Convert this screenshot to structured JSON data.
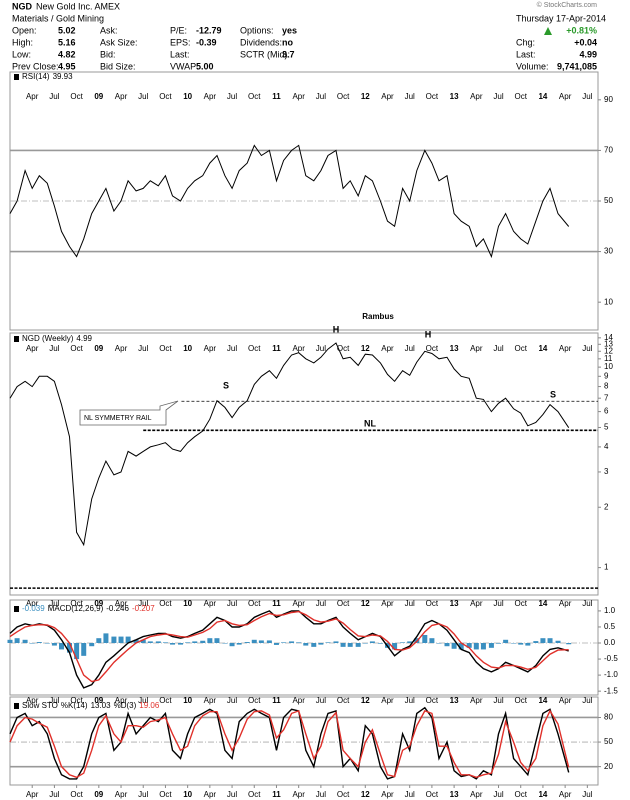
{
  "header": {
    "symbol": "NGD",
    "name": "New Gold Inc. AMEX",
    "sector": "Materials / Gold Mining",
    "date": "Thursday 17-Apr-2014",
    "credit": "© StockCharts.com",
    "change": "+0.81%",
    "columns": [
      [
        {
          "label": "Open:",
          "value": "5.02"
        },
        {
          "label": "High:",
          "value": "5.16"
        },
        {
          "label": "Low:",
          "value": "4.82"
        },
        {
          "label": "Prev Close:",
          "value": "4.95"
        }
      ],
      [
        {
          "label": "Ask:"
        },
        {
          "label": "Ask Size:"
        },
        {
          "label": "Bid:"
        },
        {
          "label": "Bid Size:"
        }
      ],
      [
        {
          "label": "P/E:",
          "value": "-12.79"
        },
        {
          "label": "EPS:",
          "value": "-0.39"
        },
        {
          "label": "Last:"
        },
        {
          "label": "VWAP:",
          "value": "5.00"
        }
      ],
      [
        {
          "label": "Options:",
          "value": "yes"
        },
        {
          "label": "Dividends:",
          "value": "no"
        },
        {
          "label": "SCTR (Mid):",
          "value": "3.7"
        }
      ]
    ],
    "right": [
      {
        "label": "Chg:",
        "value": "+0.04"
      },
      {
        "label": "Last:"
      },
      {
        "label": "Volume:",
        "value": "9,741,085"
      }
    ]
  },
  "chart_data": [
    {
      "type": "line",
      "ylim": [
        -1,
        101
      ],
      "yticks": [
        90,
        70,
        50,
        30,
        10
      ],
      "xlim": [
        2008.0,
        2014.62
      ],
      "xticks": [
        {
          "value": 2008.25,
          "label": "Apr"
        },
        {
          "value": 2008.5,
          "label": "Jul"
        },
        {
          "value": 2008.75,
          "label": "Oct"
        },
        {
          "value": 2009,
          "label": "09"
        },
        {
          "value": 2009.25,
          "label": "Apr"
        },
        {
          "value": 2009.5,
          "label": "Jul"
        },
        {
          "value": 2009.75,
          "label": "Oct"
        },
        {
          "value": 2010,
          "label": "10"
        },
        {
          "value": 2010.25,
          "label": "Apr"
        },
        {
          "value": 2010.5,
          "label": "Jul"
        },
        {
          "value": 2010.75,
          "label": "Oct"
        },
        {
          "value": 2011,
          "label": "11"
        },
        {
          "value": 2011.25,
          "label": "Apr"
        },
        {
          "value": 2011.5,
          "label": "Jul"
        },
        {
          "value": 2011.75,
          "label": "Oct"
        },
        {
          "value": 2012,
          "label": "12"
        },
        {
          "value": 2012.25,
          "label": "Apr"
        },
        {
          "value": 2012.5,
          "label": "Jul"
        },
        {
          "value": 2012.75,
          "label": "Oct"
        },
        {
          "value": 2013,
          "label": "13"
        },
        {
          "value": 2013.25,
          "label": "Apr"
        },
        {
          "value": 2013.5,
          "label": "Jul"
        },
        {
          "value": 2013.75,
          "label": "Oct"
        },
        {
          "value": 2014,
          "label": "14"
        },
        {
          "value": 2014.25,
          "label": "Apr"
        },
        {
          "value": 2014.5,
          "label": "Jul"
        }
      ],
      "x": [
        2008,
        2008.08,
        2008.17,
        2008.25,
        2008.33,
        2008.42,
        2008.5,
        2008.58,
        2008.67,
        2008.75,
        2008.83,
        2008.92,
        2009,
        2009.08,
        2009.17,
        2009.25,
        2009.33,
        2009.42,
        2009.5,
        2009.58,
        2009.67,
        2009.75,
        2009.83,
        2009.92,
        2010,
        2010.08,
        2010.17,
        2010.25,
        2010.33,
        2010.42,
        2010.5,
        2010.58,
        2010.67,
        2010.75,
        2010.83,
        2010.92,
        2011,
        2011.08,
        2011.17,
        2011.25,
        2011.33,
        2011.42,
        2011.5,
        2011.58,
        2011.67,
        2011.75,
        2011.83,
        2011.92,
        2012,
        2012.08,
        2012.17,
        2012.25,
        2012.33,
        2012.42,
        2012.5,
        2012.58,
        2012.67,
        2012.75,
        2012.83,
        2012.92,
        2013,
        2013.08,
        2013.17,
        2013.25,
        2013.33,
        2013.42,
        2013.5,
        2013.58,
        2013.67,
        2013.75,
        2013.83,
        2013.92,
        2014,
        2014.08,
        2014.17,
        2014.29
      ],
      "series": [
        {
          "name": "RSI(14)",
          "color": "#000000",
          "values": [
            45,
            50,
            62,
            55,
            60,
            57,
            48,
            38,
            32,
            28,
            35,
            45,
            50,
            55,
            46,
            50,
            58,
            54,
            55,
            58,
            56,
            60,
            52,
            50,
            55,
            58,
            60,
            65,
            68,
            60,
            55,
            62,
            65,
            72,
            68,
            70,
            58,
            66,
            70,
            72,
            60,
            58,
            62,
            68,
            70,
            55,
            58,
            52,
            60,
            58,
            50,
            42,
            40,
            55,
            50,
            62,
            70,
            65,
            58,
            60,
            45,
            42,
            40,
            32,
            35,
            28,
            40,
            45,
            38,
            35,
            33,
            42,
            50,
            55,
            45,
            39.93
          ]
        }
      ]
    },
    {
      "type": "line",
      "log": true,
      "ylim": [
        0.73,
        14.8
      ],
      "yticks": [
        1,
        2,
        3,
        4,
        5,
        6,
        7,
        8,
        9,
        10,
        11,
        12,
        13,
        14
      ],
      "note": "Rambus",
      "pattern_labels": [
        "S",
        "H",
        "H",
        "S",
        "NL"
      ],
      "callout": "NL SYMMETRY RAIL",
      "levels": [
        {
          "value": 6.76,
          "from": 2009.93
        },
        {
          "value": 4.84,
          "from": 2009.5
        },
        {
          "value": 0.79,
          "from": 2008
        }
      ],
      "x": [
        2008,
        2008.08,
        2008.17,
        2008.25,
        2008.33,
        2008.42,
        2008.5,
        2008.58,
        2008.67,
        2008.75,
        2008.83,
        2008.92,
        2009,
        2009.08,
        2009.17,
        2009.25,
        2009.33,
        2009.42,
        2009.5,
        2009.58,
        2009.67,
        2009.75,
        2009.83,
        2009.92,
        2010,
        2010.08,
        2010.17,
        2010.25,
        2010.33,
        2010.42,
        2010.5,
        2010.58,
        2010.67,
        2010.75,
        2010.83,
        2010.92,
        2011,
        2011.08,
        2011.17,
        2011.25,
        2011.33,
        2011.42,
        2011.5,
        2011.58,
        2011.67,
        2011.75,
        2011.83,
        2011.92,
        2012,
        2012.08,
        2012.17,
        2012.25,
        2012.33,
        2012.42,
        2012.5,
        2012.58,
        2012.67,
        2012.75,
        2012.83,
        2012.92,
        2013,
        2013.08,
        2013.17,
        2013.25,
        2013.33,
        2013.42,
        2013.5,
        2013.58,
        2013.67,
        2013.75,
        2013.83,
        2013.92,
        2014,
        2014.08,
        2014.17,
        2014.29
      ],
      "series": [
        {
          "name": "NGD (Weekly)",
          "color": "#000000",
          "values": [
            7,
            8,
            8.5,
            8,
            9,
            9,
            8.5,
            6.5,
            4.5,
            1.5,
            1.3,
            2.2,
            2.8,
            3.4,
            2.9,
            3.0,
            3.8,
            3.6,
            3.8,
            4.0,
            4.1,
            4.2,
            3.9,
            3.8,
            4.2,
            4.5,
            4.8,
            5.5,
            6.8,
            6.3,
            5.6,
            6.3,
            6.8,
            8.2,
            9.0,
            9.6,
            8.8,
            10.2,
            11.5,
            11.8,
            11.0,
            10.5,
            11.2,
            12.3,
            13.2,
            11.0,
            11.2,
            10.2,
            11.6,
            11.5,
            10.5,
            9.2,
            8.5,
            9.6,
            9.1,
            10.6,
            12.0,
            11.7,
            11.0,
            11.2,
            9.8,
            9.0,
            8.8,
            7.0,
            6.9,
            6.0,
            6.6,
            7.0,
            6.2,
            5.9,
            5.1,
            5.3,
            5.8,
            6.5,
            6.0,
            4.99
          ]
        }
      ]
    },
    {
      "type": "line",
      "ylim": [
        -1.62,
        1.34
      ],
      "yticks": [
        {
          "value": 1,
          "label": "1.0"
        },
        0.5,
        {
          "value": 0,
          "label": "0.0"
        },
        -0.5,
        {
          "value": -1,
          "label": "-1.0"
        },
        -1.5
      ],
      "x": [
        2008,
        2008.08,
        2008.17,
        2008.25,
        2008.33,
        2008.42,
        2008.5,
        2008.58,
        2008.67,
        2008.75,
        2008.83,
        2008.92,
        2009,
        2009.08,
        2009.17,
        2009.25,
        2009.33,
        2009.42,
        2009.5,
        2009.58,
        2009.67,
        2009.75,
        2009.83,
        2009.92,
        2010,
        2010.08,
        2010.17,
        2010.25,
        2010.33,
        2010.42,
        2010.5,
        2010.58,
        2010.67,
        2010.75,
        2010.83,
        2010.92,
        2011,
        2011.08,
        2011.17,
        2011.25,
        2011.33,
        2011.42,
        2011.5,
        2011.58,
        2011.67,
        2011.75,
        2011.83,
        2011.92,
        2012,
        2012.08,
        2012.17,
        2012.25,
        2012.33,
        2012.42,
        2012.5,
        2012.58,
        2012.67,
        2012.75,
        2012.83,
        2012.92,
        2013,
        2013.08,
        2013.17,
        2013.25,
        2013.33,
        2013.42,
        2013.5,
        2013.58,
        2013.67,
        2013.75,
        2013.83,
        2013.92,
        2014,
        2014.08,
        2014.17,
        2014.29
      ],
      "series": [
        {
          "type": "bar",
          "color": "#3a8fc0",
          "values": [
            0.1,
            0.15,
            0.1,
            0,
            0.03,
            -0.01,
            -0.08,
            -0.2,
            -0.3,
            -0.5,
            -0.4,
            -0.1,
            0.15,
            0.3,
            0.2,
            0.2,
            0.2,
            0.1,
            0.1,
            0.05,
            0.05,
            0.02,
            -0.05,
            -0.05,
            0.02,
            0.05,
            0.07,
            0.15,
            0.15,
            0,
            -0.1,
            -0.05,
            0.03,
            0.1,
            0.08,
            0.08,
            -0.06,
            0.02,
            0.05,
            0.02,
            -0.08,
            -0.12,
            -0.05,
            0.02,
            0.05,
            -0.12,
            -0.12,
            -0.12,
            0,
            0.05,
            -0.02,
            -0.15,
            -0.2,
            0.02,
            0.05,
            0.15,
            0.25,
            0.15,
            0,
            -0.1,
            -0.18,
            -0.2,
            -0.15,
            -0.2,
            -0.2,
            -0.15,
            -0.02,
            0.1,
            0,
            -0.05,
            -0.08,
            0.06,
            0.15,
            0.15,
            0.07,
            -0.039
          ]
        },
        {
          "name": "MACD(12,26,9)",
          "color": "#000000",
          "values": [
            0.3,
            0.5,
            0.6,
            0.55,
            0.6,
            0.55,
            0.4,
            0.1,
            -0.3,
            -1.0,
            -1.4,
            -1.3,
            -1.0,
            -0.6,
            -0.4,
            -0.2,
            0.0,
            0.1,
            0.2,
            0.25,
            0.3,
            0.3,
            0.2,
            0.15,
            0.2,
            0.3,
            0.4,
            0.6,
            0.8,
            0.7,
            0.5,
            0.5,
            0.6,
            0.8,
            0.9,
            1.0,
            0.8,
            0.9,
            1.0,
            1.0,
            0.8,
            0.6,
            0.6,
            0.7,
            0.8,
            0.5,
            0.3,
            0.1,
            0.2,
            0.3,
            0.2,
            -0.1,
            -0.4,
            -0.2,
            -0.1,
            0.2,
            0.6,
            0.7,
            0.6,
            0.4,
            0.1,
            -0.2,
            -0.3,
            -0.6,
            -0.8,
            -0.9,
            -0.8,
            -0.6,
            -0.7,
            -0.8,
            -0.9,
            -0.7,
            -0.4,
            -0.2,
            -0.15,
            -0.246
          ]
        },
        {
          "color": "#e0302a",
          "values": [
            0.2,
            0.35,
            0.5,
            0.55,
            0.57,
            0.56,
            0.48,
            0.3,
            0.0,
            -0.5,
            -1.0,
            -1.2,
            -1.15,
            -0.9,
            -0.6,
            -0.4,
            -0.2,
            0.0,
            0.1,
            0.2,
            0.25,
            0.28,
            0.25,
            0.2,
            0.18,
            0.25,
            0.33,
            0.45,
            0.65,
            0.7,
            0.6,
            0.55,
            0.57,
            0.7,
            0.82,
            0.92,
            0.86,
            0.88,
            0.95,
            0.98,
            0.88,
            0.72,
            0.65,
            0.68,
            0.75,
            0.62,
            0.42,
            0.22,
            0.2,
            0.25,
            0.22,
            0.05,
            -0.2,
            -0.22,
            -0.15,
            0.05,
            0.35,
            0.55,
            0.6,
            0.5,
            0.28,
            0.0,
            -0.15,
            -0.4,
            -0.6,
            -0.75,
            -0.78,
            -0.7,
            -0.7,
            -0.75,
            -0.82,
            -0.76,
            -0.55,
            -0.35,
            -0.22,
            -0.207
          ]
        }
      ]
    },
    {
      "type": "line",
      "title": "Slow STO",
      "ylim": [
        -2.4,
        105
      ],
      "yticks": [
        80,
        50,
        20
      ],
      "x": [
        2008,
        2008.08,
        2008.17,
        2008.25,
        2008.33,
        2008.42,
        2008.5,
        2008.58,
        2008.67,
        2008.75,
        2008.83,
        2008.92,
        2009,
        2009.08,
        2009.17,
        2009.25,
        2009.33,
        2009.42,
        2009.5,
        2009.58,
        2009.67,
        2009.75,
        2009.83,
        2009.92,
        2010,
        2010.08,
        2010.17,
        2010.25,
        2010.33,
        2010.42,
        2010.5,
        2010.58,
        2010.67,
        2010.75,
        2010.83,
        2010.92,
        2011,
        2011.08,
        2011.17,
        2011.25,
        2011.33,
        2011.42,
        2011.5,
        2011.58,
        2011.67,
        2011.75,
        2011.83,
        2011.92,
        2012,
        2012.08,
        2012.17,
        2012.25,
        2012.33,
        2012.42,
        2012.5,
        2012.58,
        2012.67,
        2012.75,
        2012.83,
        2012.92,
        2013,
        2013.08,
        2013.17,
        2013.25,
        2013.33,
        2013.42,
        2013.5,
        2013.58,
        2013.67,
        2013.75,
        2013.83,
        2013.92,
        2014,
        2014.08,
        2014.17,
        2014.29
      ],
      "series": [
        {
          "name": "%K(14)",
          "color": "#000000",
          "values": [
            60,
            80,
            85,
            70,
            75,
            60,
            30,
            10,
            5,
            5,
            20,
            60,
            80,
            85,
            40,
            50,
            85,
            60,
            70,
            80,
            75,
            85,
            40,
            30,
            60,
            80,
            85,
            90,
            85,
            40,
            30,
            75,
            85,
            90,
            85,
            80,
            40,
            80,
            90,
            88,
            40,
            20,
            60,
            85,
            88,
            20,
            30,
            15,
            70,
            60,
            20,
            5,
            8,
            60,
            40,
            85,
            92,
            80,
            30,
            50,
            15,
            8,
            10,
            5,
            15,
            10,
            60,
            85,
            30,
            20,
            10,
            50,
            85,
            90,
            60,
            13.03
          ]
        },
        {
          "name": "%D(3)",
          "color": "#e0302a",
          "values": [
            50,
            70,
            80,
            78,
            73,
            68,
            45,
            20,
            10,
            7,
            12,
            40,
            70,
            82,
            60,
            50,
            70,
            70,
            68,
            75,
            77,
            80,
            60,
            40,
            45,
            70,
            82,
            87,
            87,
            60,
            40,
            55,
            78,
            87,
            88,
            83,
            55,
            65,
            85,
            88,
            60,
            30,
            45,
            75,
            86,
            40,
            30,
            20,
            50,
            65,
            35,
            10,
            8,
            40,
            45,
            70,
            88,
            85,
            45,
            45,
            25,
            10,
            10,
            7,
            10,
            12,
            35,
            75,
            50,
            25,
            15,
            30,
            70,
            88,
            72,
            19.06
          ]
        }
      ]
    }
  ]
}
